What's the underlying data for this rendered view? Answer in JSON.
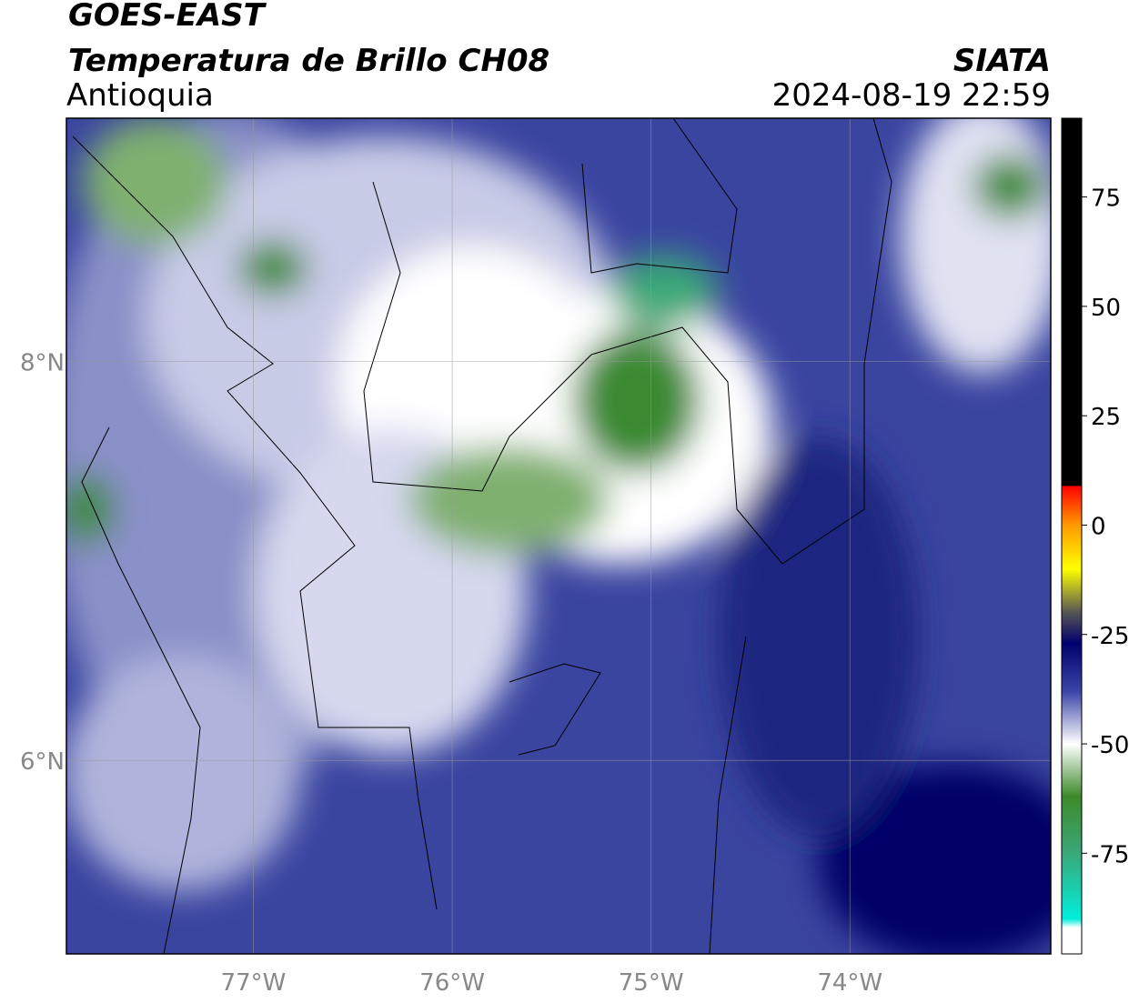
{
  "header": {
    "title": "GOES-EAST",
    "subtitle": "Temperatura de Brillo CH08",
    "region": "Antioquia",
    "source": "SIATA",
    "timestamp": "2024-08-19 22:59"
  },
  "map": {
    "xlim": [
      -77.94,
      -72.99
    ],
    "ylim": [
      5.03,
      9.22
    ],
    "xticks": [
      {
        "value": -77,
        "label": "77°W"
      },
      {
        "value": -76,
        "label": "76°W"
      },
      {
        "value": -75,
        "label": "75°W"
      },
      {
        "value": -74,
        "label": "74°W"
      }
    ],
    "yticks": [
      {
        "value": 8,
        "label": "8°N"
      },
      {
        "value": 6,
        "label": "6°N"
      }
    ]
  },
  "colorbar": {
    "lim": [
      -98,
      93
    ],
    "ticks": [
      75,
      50,
      25,
      0,
      -25,
      -50,
      -75
    ],
    "colormap": [
      {
        "value": 93,
        "color": "#000000"
      },
      {
        "value": 9,
        "color": "#000000"
      },
      {
        "value": 8.9,
        "color": "#ff0000"
      },
      {
        "value": 0,
        "color": "#ff9900"
      },
      {
        "value": -10,
        "color": "#ffff00"
      },
      {
        "value": -20,
        "color": "#555555"
      },
      {
        "value": -27,
        "color": "#00006e"
      },
      {
        "value": -38,
        "color": "#3a45a8"
      },
      {
        "value": -50,
        "color": "#ffffff"
      },
      {
        "value": -62,
        "color": "#3d8a2a"
      },
      {
        "value": -75,
        "color": "#3aa878"
      },
      {
        "value": -90,
        "color": "#00eedd"
      },
      {
        "value": -92,
        "color": "#ffffff"
      },
      {
        "value": -98,
        "color": "#ffffff"
      }
    ]
  }
}
